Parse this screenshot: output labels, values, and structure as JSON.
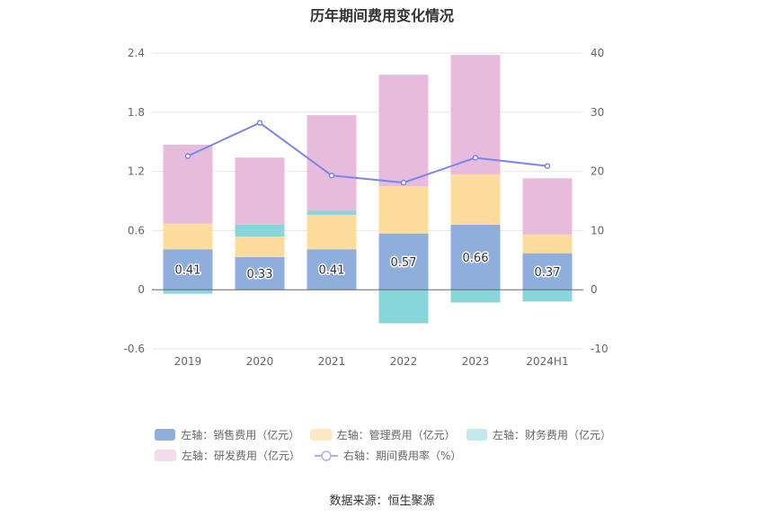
{
  "chart_data": {
    "type": "bar",
    "title": "历年期间费用变化情况",
    "categories": [
      "2019",
      "2020",
      "2021",
      "2022",
      "2023",
      "2024H1"
    ],
    "stacked": true,
    "y_left": {
      "ylim": [
        -0.6,
        2.4
      ],
      "ticks": [
        "-0.6",
        "0",
        "0.6",
        "1.2",
        "1.8",
        "2.4"
      ]
    },
    "y_right": {
      "ylim": [
        -10,
        40
      ],
      "ticks": [
        "-10",
        "0",
        "10",
        "20",
        "30",
        "40"
      ]
    },
    "grid": true,
    "legend_position": "bottom",
    "series": [
      {
        "name": "左轴：销售费用（亿元）",
        "axis": "left",
        "type": "bar",
        "color": "#8eaedb",
        "values": [
          0.41,
          0.33,
          0.41,
          0.57,
          0.66,
          0.37
        ],
        "labels": [
          "0.41",
          "0.33",
          "0.41",
          "0.57",
          "0.66",
          "0.37"
        ]
      },
      {
        "name": "左轴：管理费用（亿元）",
        "axis": "left",
        "type": "bar",
        "color": "#fddc9d",
        "values": [
          0.26,
          0.21,
          0.35,
          0.48,
          0.51,
          0.19
        ]
      },
      {
        "name": "左轴：财务费用（亿元）",
        "axis": "left",
        "type": "bar",
        "color": "#87d6da",
        "values": [
          -0.04,
          0.12,
          0.04,
          -0.34,
          -0.13,
          -0.12
        ]
      },
      {
        "name": "左轴：研发费用（亿元）",
        "axis": "left",
        "type": "bar",
        "color": "#e6bbdb",
        "values": [
          0.8,
          0.68,
          0.97,
          1.13,
          1.21,
          0.57
        ]
      },
      {
        "name": "右轴：期间费用率（%）",
        "axis": "right",
        "type": "line",
        "color": "#7b84ec",
        "values": [
          22.6,
          28.2,
          19.3,
          18.1,
          22.3,
          20.9
        ]
      }
    ]
  },
  "source_text": "数据来源：恒生聚源"
}
